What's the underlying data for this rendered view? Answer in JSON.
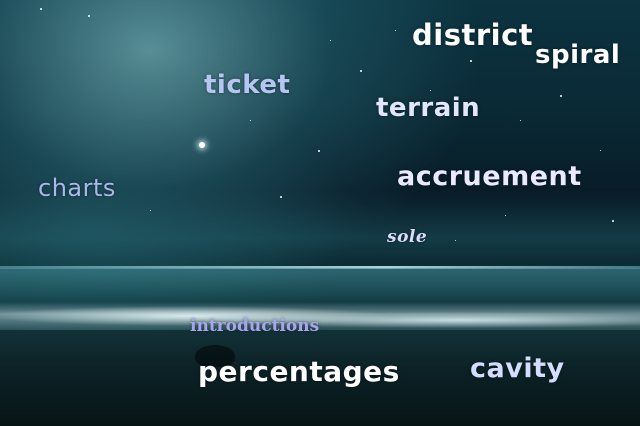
{
  "words": [
    {
      "text": "district",
      "color": "#ffffff"
    },
    {
      "text": "spiral",
      "color": "#ffffff"
    },
    {
      "text": "ticket",
      "color": "#b6c6f2"
    },
    {
      "text": "terrain",
      "color": "#e2e6ff"
    },
    {
      "text": "charts",
      "color": "#a9b8e8"
    },
    {
      "text": "accruement",
      "color": "#eaeaff"
    },
    {
      "text": "sole",
      "color": "#dcdcff"
    },
    {
      "text": "introductions",
      "color": "#a6a6ee"
    },
    {
      "text": "percentages",
      "color": "#ffffff"
    },
    {
      "text": "cavity",
      "color": "#d4dcff"
    }
  ]
}
